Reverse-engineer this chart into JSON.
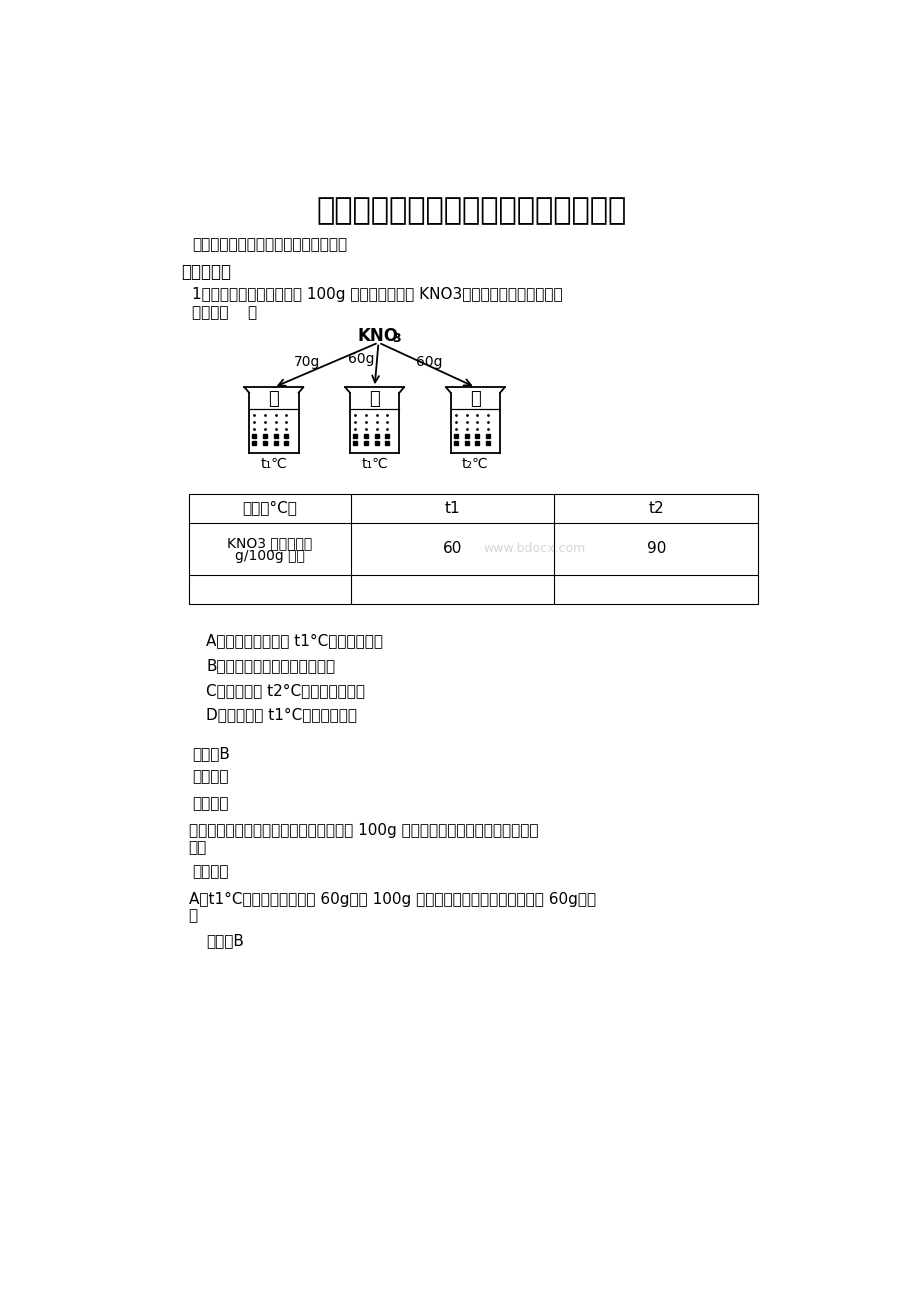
{
  "bg_color": "#ffffff",
  "title": "初中化学溶解度知识点及练习题及答案",
  "subtitle": "初中化学溶解度知识点及练习题及答案",
  "section1": "一、选择题",
  "q1_text1": "1．如图所示，分别向盛有 100g 水的烧杯中加入 KNO3，充分溶解。下列说法正",
  "q1_text2": "确的是（    ）",
  "kno3_label": "KNO3",
  "amounts": [
    "70g",
    "60g",
    "60g"
  ],
  "beaker_labels": [
    "甲",
    "乙",
    "丙"
  ],
  "beaker_temps": [
    "t1℃",
    "t1℃",
    "t2℃"
  ],
  "table_row0": [
    "温度（°C）",
    "t1",
    "t2"
  ],
  "table_row1_label1": "KNO3 的溶解度（",
  "table_row1_label2": "g/100g 水）",
  "table_row1_v1": "60",
  "table_row1_v2": "90",
  "watermark": "www.bdocx.com",
  "options": [
    "A．甲、乙混合后为 t1°C的不饱和溶液",
    "B．甲、丙溶液中溶质质量相等",
    "C．乙升温至 t2°C，溶液质量增加",
    "D．丙降温至 t1°C，有晶体析出"
  ],
  "answer_label": "答案：B",
  "analysis_label": "【解析】",
  "fenxi_label": "【分析】",
  "fenxi_text1": "溶解度指的是一定温度下，某固态物质在 100g 溶剂里达到饱和状态时所溶解的质",
  "fenxi_text2": "量。",
  "xiangji_label": "【详解】",
  "xiangji_text": "A、t1°C硝酸甲的溶解度为 60g，即 100g 溶剂里最多溶解硝酸钾的质量为 60g，甲",
  "xiangji_text2": "、",
  "jiexi_label": "解析：B"
}
